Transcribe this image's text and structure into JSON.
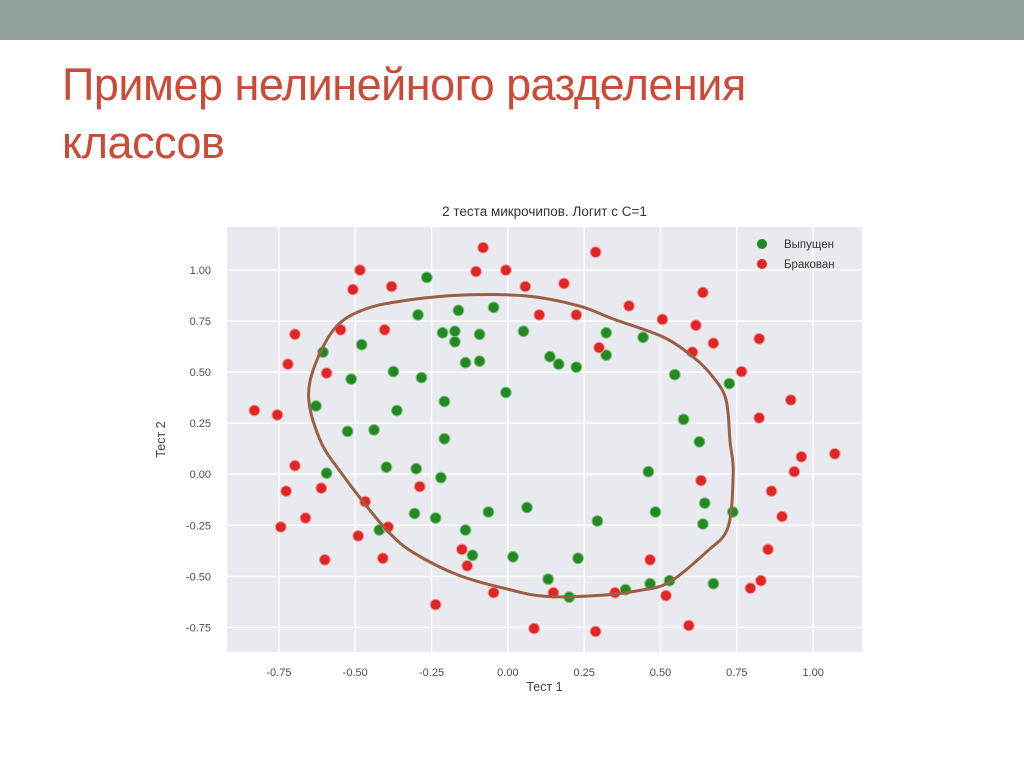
{
  "slide": {
    "title_lines": [
      "Пример нелинейного разделения",
      "классов"
    ],
    "title_color": "#cb4a38",
    "header_bar_color": "#93a298",
    "background_color": "#ffffff"
  },
  "chart_data": {
    "type": "scatter",
    "title": "2 теста микрочипов. Логит с C=1",
    "xlabel": "Тест 1",
    "ylabel": "Тест 2",
    "xlim": [
      -0.92,
      1.16
    ],
    "ylim": [
      -0.87,
      1.21
    ],
    "grid": true,
    "plot_bg_color": "#e9eaef",
    "grid_color": "#ffffff",
    "xticks": [
      -0.75,
      -0.5,
      -0.25,
      0,
      0.25,
      0.5,
      0.75,
      1.0
    ],
    "xtick_labels": [
      "-0.75",
      "-0.50",
      "-0.25",
      "0.00",
      "0.25",
      "0.50",
      "0.75",
      "1.00"
    ],
    "yticks": [
      1.0,
      0.75,
      0.5,
      0.25,
      0,
      -0.25,
      -0.5,
      -0.75
    ],
    "ytick_labels": [
      "1.00",
      "0.75",
      "0.50",
      "0.25",
      "0.00",
      "-0.25",
      "-0.50",
      "-0.75"
    ],
    "legend": {
      "position": "upper right",
      "entries": [
        {
          "label": "Выпущен",
          "color": "#238a23"
        },
        {
          "label": "Бракован",
          "color": "#e02525"
        }
      ]
    },
    "series": [
      {
        "name": "Выпущен",
        "color": "#238a23",
        "edge_color": "#7fc47f",
        "points": [
          [
            0.0513,
            0.6996
          ],
          [
            -0.0927,
            0.6849
          ],
          [
            -0.2137,
            0.6923
          ],
          [
            -0.375,
            0.5022
          ],
          [
            -0.5132,
            0.4656
          ],
          [
            -0.5248,
            0.2098
          ],
          [
            -0.398,
            0.0344
          ],
          [
            -0.3059,
            -0.1922
          ],
          [
            0.0167,
            -0.4042
          ],
          [
            0.1319,
            -0.5139
          ],
          [
            0.3854,
            -0.5651
          ],
          [
            0.5294,
            -0.5212
          ],
          [
            0.6388,
            -0.2434
          ],
          [
            0.7368,
            -0.1849
          ],
          [
            0.5467,
            0.4876
          ],
          [
            0.322,
            0.5826
          ],
          [
            0.1665,
            0.5387
          ],
          [
            -0.0467,
            0.8165
          ],
          [
            -0.1734,
            0.6996
          ],
          [
            -0.4787,
            0.6338
          ],
          [
            -0.6054,
            0.5972
          ],
          [
            -0.6285,
            0.3341
          ],
          [
            -0.5939,
            0.0051
          ],
          [
            -0.4211,
            -0.2727
          ],
          [
            -0.1158,
            -0.3969
          ],
          [
            0.201,
            -0.6016
          ],
          [
            0.466,
            -0.5358
          ],
          [
            0.6734,
            -0.5358
          ],
          [
            -0.1388,
            0.5461
          ],
          [
            -0.2944,
            0.78
          ],
          [
            -0.2656,
            0.9627
          ],
          [
            -0.1619,
            0.8019
          ],
          [
            -0.1734,
            0.6484
          ],
          [
            -0.2828,
            0.473
          ],
          [
            -0.3635,
            0.3121
          ],
          [
            -0.3001,
            0.027
          ],
          [
            -0.2368,
            -0.2142
          ],
          [
            -0.0639,
            -0.1849
          ],
          [
            0.0628,
            -0.163
          ],
          [
            0.2298,
            -0.4116
          ],
          [
            0.2932,
            -0.2288
          ],
          [
            0.4833,
            -0.1849
          ],
          [
            0.6446,
            -0.1411
          ],
          [
            0.4603,
            0.0124
          ],
          [
            0.6273,
            0.1586
          ],
          [
            0.5755,
            0.2683
          ],
          [
            0.7252,
            0.4437
          ],
          [
            0.2241,
            0.5241
          ],
          [
            0.443,
            0.6703
          ],
          [
            0.322,
            0.6923
          ],
          [
            0.1377,
            0.5753
          ],
          [
            -0.0063,
            0.3999
          ],
          [
            -0.0927,
            0.5534
          ],
          [
            -0.208,
            0.356
          ],
          [
            -0.208,
            0.1732
          ],
          [
            -0.4384,
            0.2171
          ],
          [
            -0.2195,
            -0.0168
          ],
          [
            -0.1388,
            -0.2727
          ]
        ]
      },
      {
        "name": "Бракован",
        "color": "#e02525",
        "edge_color": "#f09b9b",
        "points": [
          [
            0.1838,
            0.9335
          ],
          [
            0.2241,
            0.78
          ],
          [
            0.299,
            0.6192
          ],
          [
            0.5063,
            0.758
          ],
          [
            0.6158,
            0.7288
          ],
          [
            0.6043,
            0.5972
          ],
          [
            0.7656,
            0.5022
          ],
          [
            0.9268,
            0.3633
          ],
          [
            0.8232,
            0.2756
          ],
          [
            0.9614,
            0.0855
          ],
          [
            0.9384,
            0.0124
          ],
          [
            0.8635,
            -0.0826
          ],
          [
            0.898,
            -0.2069
          ],
          [
            0.852,
            -0.3677
          ],
          [
            0.8289,
            -0.5212
          ],
          [
            0.7944,
            -0.5577
          ],
          [
            0.5927,
            -0.7405
          ],
          [
            0.5179,
            -0.5943
          ],
          [
            0.466,
            -0.4189
          ],
          [
            0.3508,
            -0.5797
          ],
          [
            0.2874,
            -0.7697
          ],
          [
            0.0858,
            -0.7551
          ],
          [
            0.1492,
            -0.5797
          ],
          [
            -0.1331,
            -0.4481
          ],
          [
            -0.4096,
            -0.4116
          ],
          [
            -0.3923,
            -0.258
          ],
          [
            -0.7437,
            -0.258
          ],
          [
            -0.6976,
            0.0417
          ],
          [
            -0.7552,
            0.2902
          ],
          [
            -0.6976,
            0.6849
          ],
          [
            -0.4038,
            0.7069
          ],
          [
            -0.3808,
            0.9189
          ],
          [
            -0.5075,
            0.9042
          ],
          [
            -0.5478,
            0.7069
          ],
          [
            0.1031,
            0.78
          ],
          [
            0.057,
            0.9189
          ],
          [
            -0.1043,
            0.992
          ],
          [
            -0.0812,
            1.1089
          ],
          [
            0.2874,
            1.087
          ],
          [
            0.3969,
            0.8238
          ],
          [
            0.6388,
            0.8896
          ],
          [
            0.8232,
            0.663
          ],
          [
            0.6734,
            0.6411
          ],
          [
            1.0709,
            0.1002
          ],
          [
            -0.0467,
            -0.5797
          ],
          [
            -0.2368,
            -0.6382
          ],
          [
            -0.1504,
            -0.3677
          ],
          [
            -0.4902,
            -0.3019
          ],
          [
            -0.4672,
            -0.1338
          ],
          [
            -0.2886,
            -0.0607
          ],
          [
            -0.6112,
            -0.068
          ],
          [
            -0.663,
            -0.2142
          ],
          [
            -0.5997,
            -0.4189
          ],
          [
            -0.7264,
            -0.0826
          ],
          [
            -0.8301,
            0.3121
          ],
          [
            -0.7206,
            0.5387
          ],
          [
            -0.5939,
            0.4949
          ],
          [
            -0.4845,
            0.9993
          ],
          [
            -0.0063,
            0.9993
          ],
          [
            0.6327,
            -0.0306
          ]
        ]
      }
    ],
    "boundary": {
      "name": "decision-boundary",
      "color": "#9a5f44",
      "points": [
        [
          -0.652,
          0.363
        ],
        [
          -0.632,
          0.534
        ],
        [
          -0.563,
          0.721
        ],
        [
          -0.465,
          0.809
        ],
        [
          -0.324,
          0.853
        ],
        [
          -0.144,
          0.877
        ],
        [
          0.059,
          0.873
        ],
        [
          0.233,
          0.824
        ],
        [
          0.344,
          0.76
        ],
        [
          0.508,
          0.672
        ],
        [
          0.607,
          0.574
        ],
        [
          0.672,
          0.476
        ],
        [
          0.715,
          0.363
        ],
        [
          0.728,
          0.157
        ],
        [
          0.738,
          0.01
        ],
        [
          0.721,
          -0.26
        ],
        [
          0.649,
          -0.382
        ],
        [
          0.528,
          -0.529
        ],
        [
          0.43,
          -0.569
        ],
        [
          0.299,
          -0.593
        ],
        [
          0.125,
          -0.598
        ],
        [
          0.004,
          -0.564
        ],
        [
          -0.16,
          -0.495
        ],
        [
          -0.311,
          -0.382
        ],
        [
          -0.39,
          -0.284
        ],
        [
          -0.465,
          -0.152
        ],
        [
          -0.54,
          -0.005
        ],
        [
          -0.612,
          0.157
        ]
      ]
    }
  }
}
